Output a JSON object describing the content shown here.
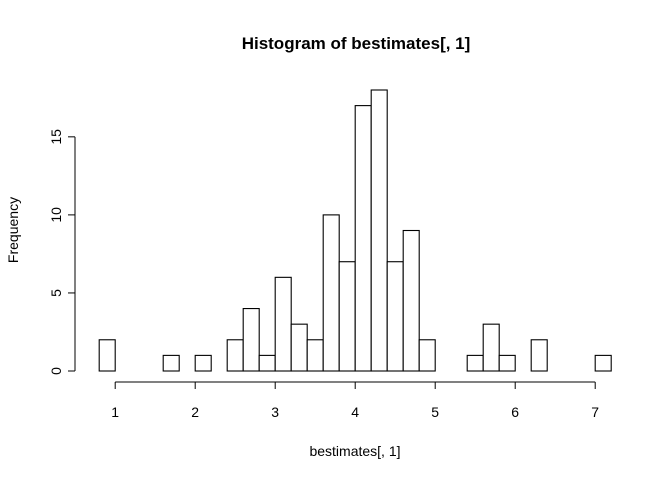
{
  "chart_data": {
    "type": "bar",
    "title": "Histogram of bestimates[, 1]",
    "xlabel": "bestimates[, 1]",
    "ylabel": "Frequency",
    "bin_width": 0.2,
    "bins": [
      {
        "start": 0.8,
        "end": 1.0,
        "count": 2
      },
      {
        "start": 1.0,
        "end": 1.2,
        "count": 0
      },
      {
        "start": 1.2,
        "end": 1.4,
        "count": 0
      },
      {
        "start": 1.4,
        "end": 1.6,
        "count": 0
      },
      {
        "start": 1.6,
        "end": 1.8,
        "count": 1
      },
      {
        "start": 1.8,
        "end": 2.0,
        "count": 0
      },
      {
        "start": 2.0,
        "end": 2.2,
        "count": 1
      },
      {
        "start": 2.2,
        "end": 2.4,
        "count": 0
      },
      {
        "start": 2.4,
        "end": 2.6,
        "count": 2
      },
      {
        "start": 2.6,
        "end": 2.8,
        "count": 4
      },
      {
        "start": 2.8,
        "end": 3.0,
        "count": 1
      },
      {
        "start": 3.0,
        "end": 3.2,
        "count": 6
      },
      {
        "start": 3.2,
        "end": 3.4,
        "count": 3
      },
      {
        "start": 3.4,
        "end": 3.6,
        "count": 2
      },
      {
        "start": 3.6,
        "end": 3.8,
        "count": 10
      },
      {
        "start": 3.8,
        "end": 4.0,
        "count": 7
      },
      {
        "start": 4.0,
        "end": 4.2,
        "count": 17
      },
      {
        "start": 4.2,
        "end": 4.4,
        "count": 18
      },
      {
        "start": 4.4,
        "end": 4.6,
        "count": 7
      },
      {
        "start": 4.6,
        "end": 4.8,
        "count": 9
      },
      {
        "start": 4.8,
        "end": 5.0,
        "count": 2
      },
      {
        "start": 5.0,
        "end": 5.2,
        "count": 0
      },
      {
        "start": 5.2,
        "end": 5.4,
        "count": 0
      },
      {
        "start": 5.4,
        "end": 5.6,
        "count": 1
      },
      {
        "start": 5.6,
        "end": 5.8,
        "count": 3
      },
      {
        "start": 5.8,
        "end": 6.0,
        "count": 1
      },
      {
        "start": 6.0,
        "end": 6.2,
        "count": 0
      },
      {
        "start": 6.2,
        "end": 6.4,
        "count": 2
      },
      {
        "start": 6.4,
        "end": 6.6,
        "count": 0
      },
      {
        "start": 6.6,
        "end": 6.8,
        "count": 0
      },
      {
        "start": 6.8,
        "end": 7.0,
        "count": 0
      },
      {
        "start": 7.0,
        "end": 7.2,
        "count": 1
      }
    ],
    "xlim": [
      0.8,
      7.2
    ],
    "ylim": [
      0,
      18
    ],
    "x_ticks": [
      1,
      2,
      3,
      4,
      5,
      6,
      7
    ],
    "y_ticks": [
      0,
      5,
      10,
      15
    ],
    "grid": false,
    "legend": "none",
    "bar_fill": "#ffffff",
    "bar_stroke": "#000000"
  }
}
